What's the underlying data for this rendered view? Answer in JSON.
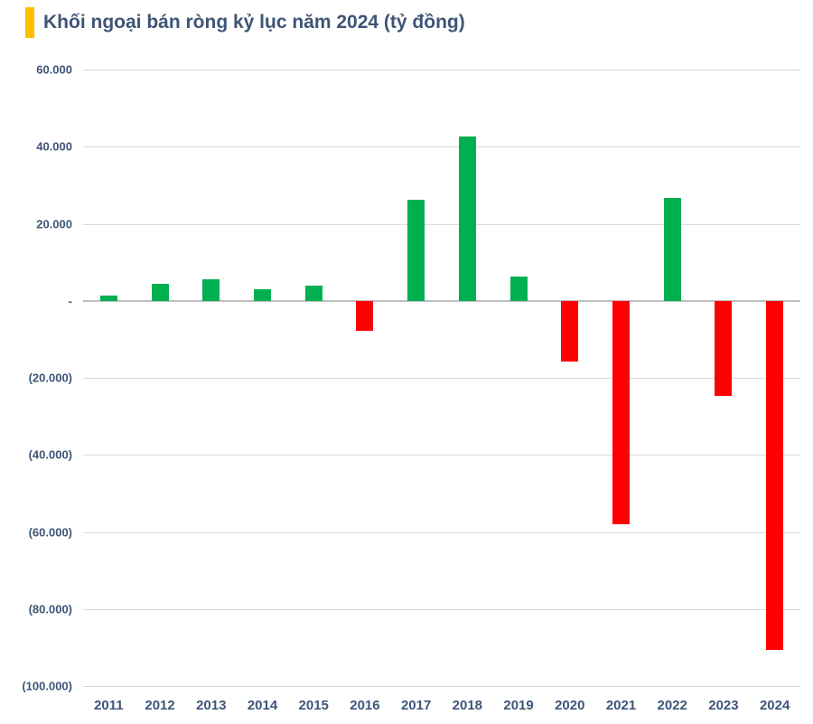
{
  "title": {
    "text": "Khối ngoại bán ròng kỷ lục năm 2024 (tỷ đồng)"
  },
  "colors": {
    "accent": "#FFC000",
    "positive_bar": "#00B050",
    "negative_bar": "#FF0000",
    "gridline": "#D9D9D9",
    "zero_line": "#BFBFBF",
    "text": "#3E5577"
  },
  "chart_data": {
    "type": "bar",
    "title": "Khối ngoại bán ròng kỷ lục năm 2024 (tỷ đồng)",
    "xlabel": "",
    "ylabel": "",
    "unit": "tỷ đồng",
    "categories": [
      "2011",
      "2012",
      "2013",
      "2014",
      "2015",
      "2016",
      "2017",
      "2018",
      "2019",
      "2020",
      "2021",
      "2022",
      "2023",
      "2024"
    ],
    "values": [
      1300,
      4500,
      5500,
      3000,
      4000,
      -7700,
      26300,
      42600,
      6200,
      -15700,
      -58100,
      26700,
      -24800,
      -90500
    ],
    "ylim": [
      -100000,
      60000
    ],
    "grid": true,
    "legend": false,
    "y_ticks": [
      {
        "value": 60000,
        "label": "60.000"
      },
      {
        "value": 40000,
        "label": "40.000"
      },
      {
        "value": 20000,
        "label": "20.000"
      },
      {
        "value": 0,
        "label": "-"
      },
      {
        "value": -20000,
        "label": "(20.000)"
      },
      {
        "value": -40000,
        "label": "(40.000)"
      },
      {
        "value": -60000,
        "label": "(60.000)"
      },
      {
        "value": -80000,
        "label": "(80.000)"
      },
      {
        "value": -100000,
        "label": "(100.000)"
      }
    ]
  }
}
